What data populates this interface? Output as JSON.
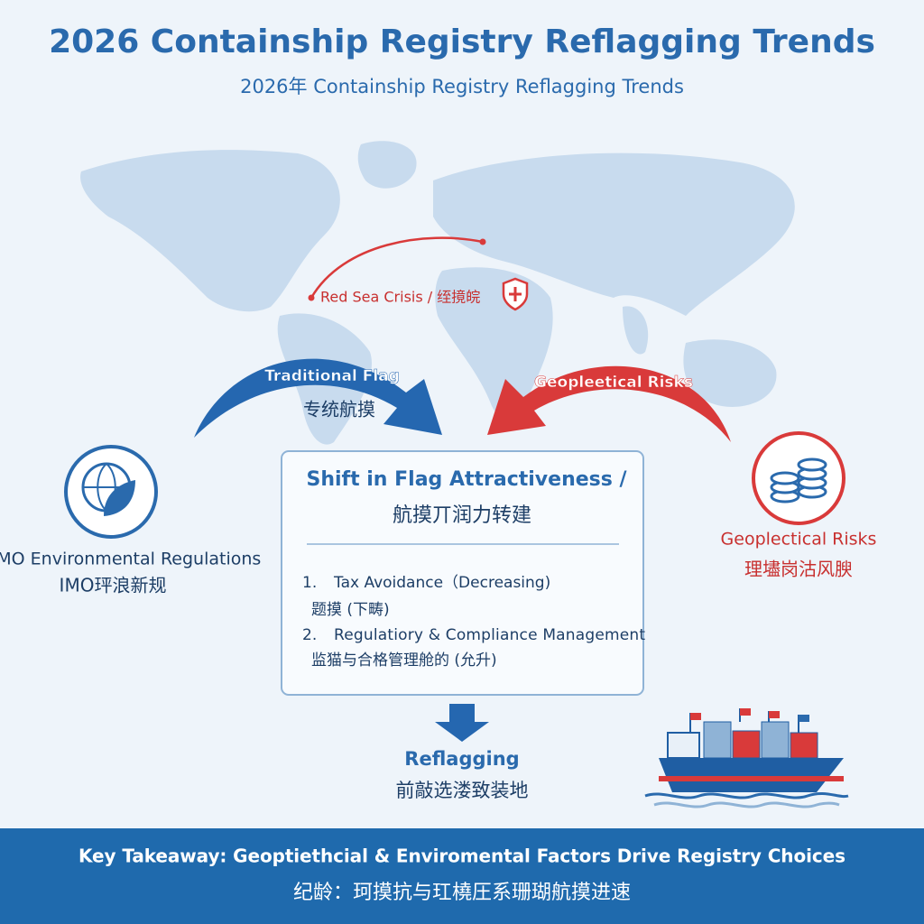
{
  "header": {
    "title": "2026 Containship Registry Reflagging Trends",
    "subtitle": "2026年 Containship Registry Reflagging Trends"
  },
  "map": {
    "annotation": "Red Sea Crisis / 绖摬皖"
  },
  "arrows": {
    "left": {
      "label": "Traditional Flag",
      "sublabel": "专统航摸"
    },
    "right": {
      "label": "Geopleetical Risks"
    }
  },
  "nodes": [
    {
      "label": "IMO Environmental Regulations",
      "sublabel": "IMO玶浪新规"
    },
    {
      "label": "Geoplectical Risks",
      "sublabel": "理壗岗沽风腴"
    }
  ],
  "center": {
    "title": "Shift in Flag Attractiveness /",
    "subtitle": "航摸丌润力转建",
    "items": [
      {
        "number": "1.",
        "text": "Tax Avoidance（Decreasing)",
        "subtext": "题摸 (下畴)"
      },
      {
        "number": "2.",
        "text": "Regulatiory & Compliance Management",
        "subtext": "监猫与合格管理舱的 (允升)"
      }
    ]
  },
  "result": {
    "label": "Reflagging",
    "sublabel": "前敲选溇致装地"
  },
  "footer": {
    "line1": "Key Takeaway: Geoptiethcial & Enviromental Factors Drive Registry Choices",
    "line2": "纪龄：珂摸抗与玒橈圧系珊瑚航摸进速"
  }
}
